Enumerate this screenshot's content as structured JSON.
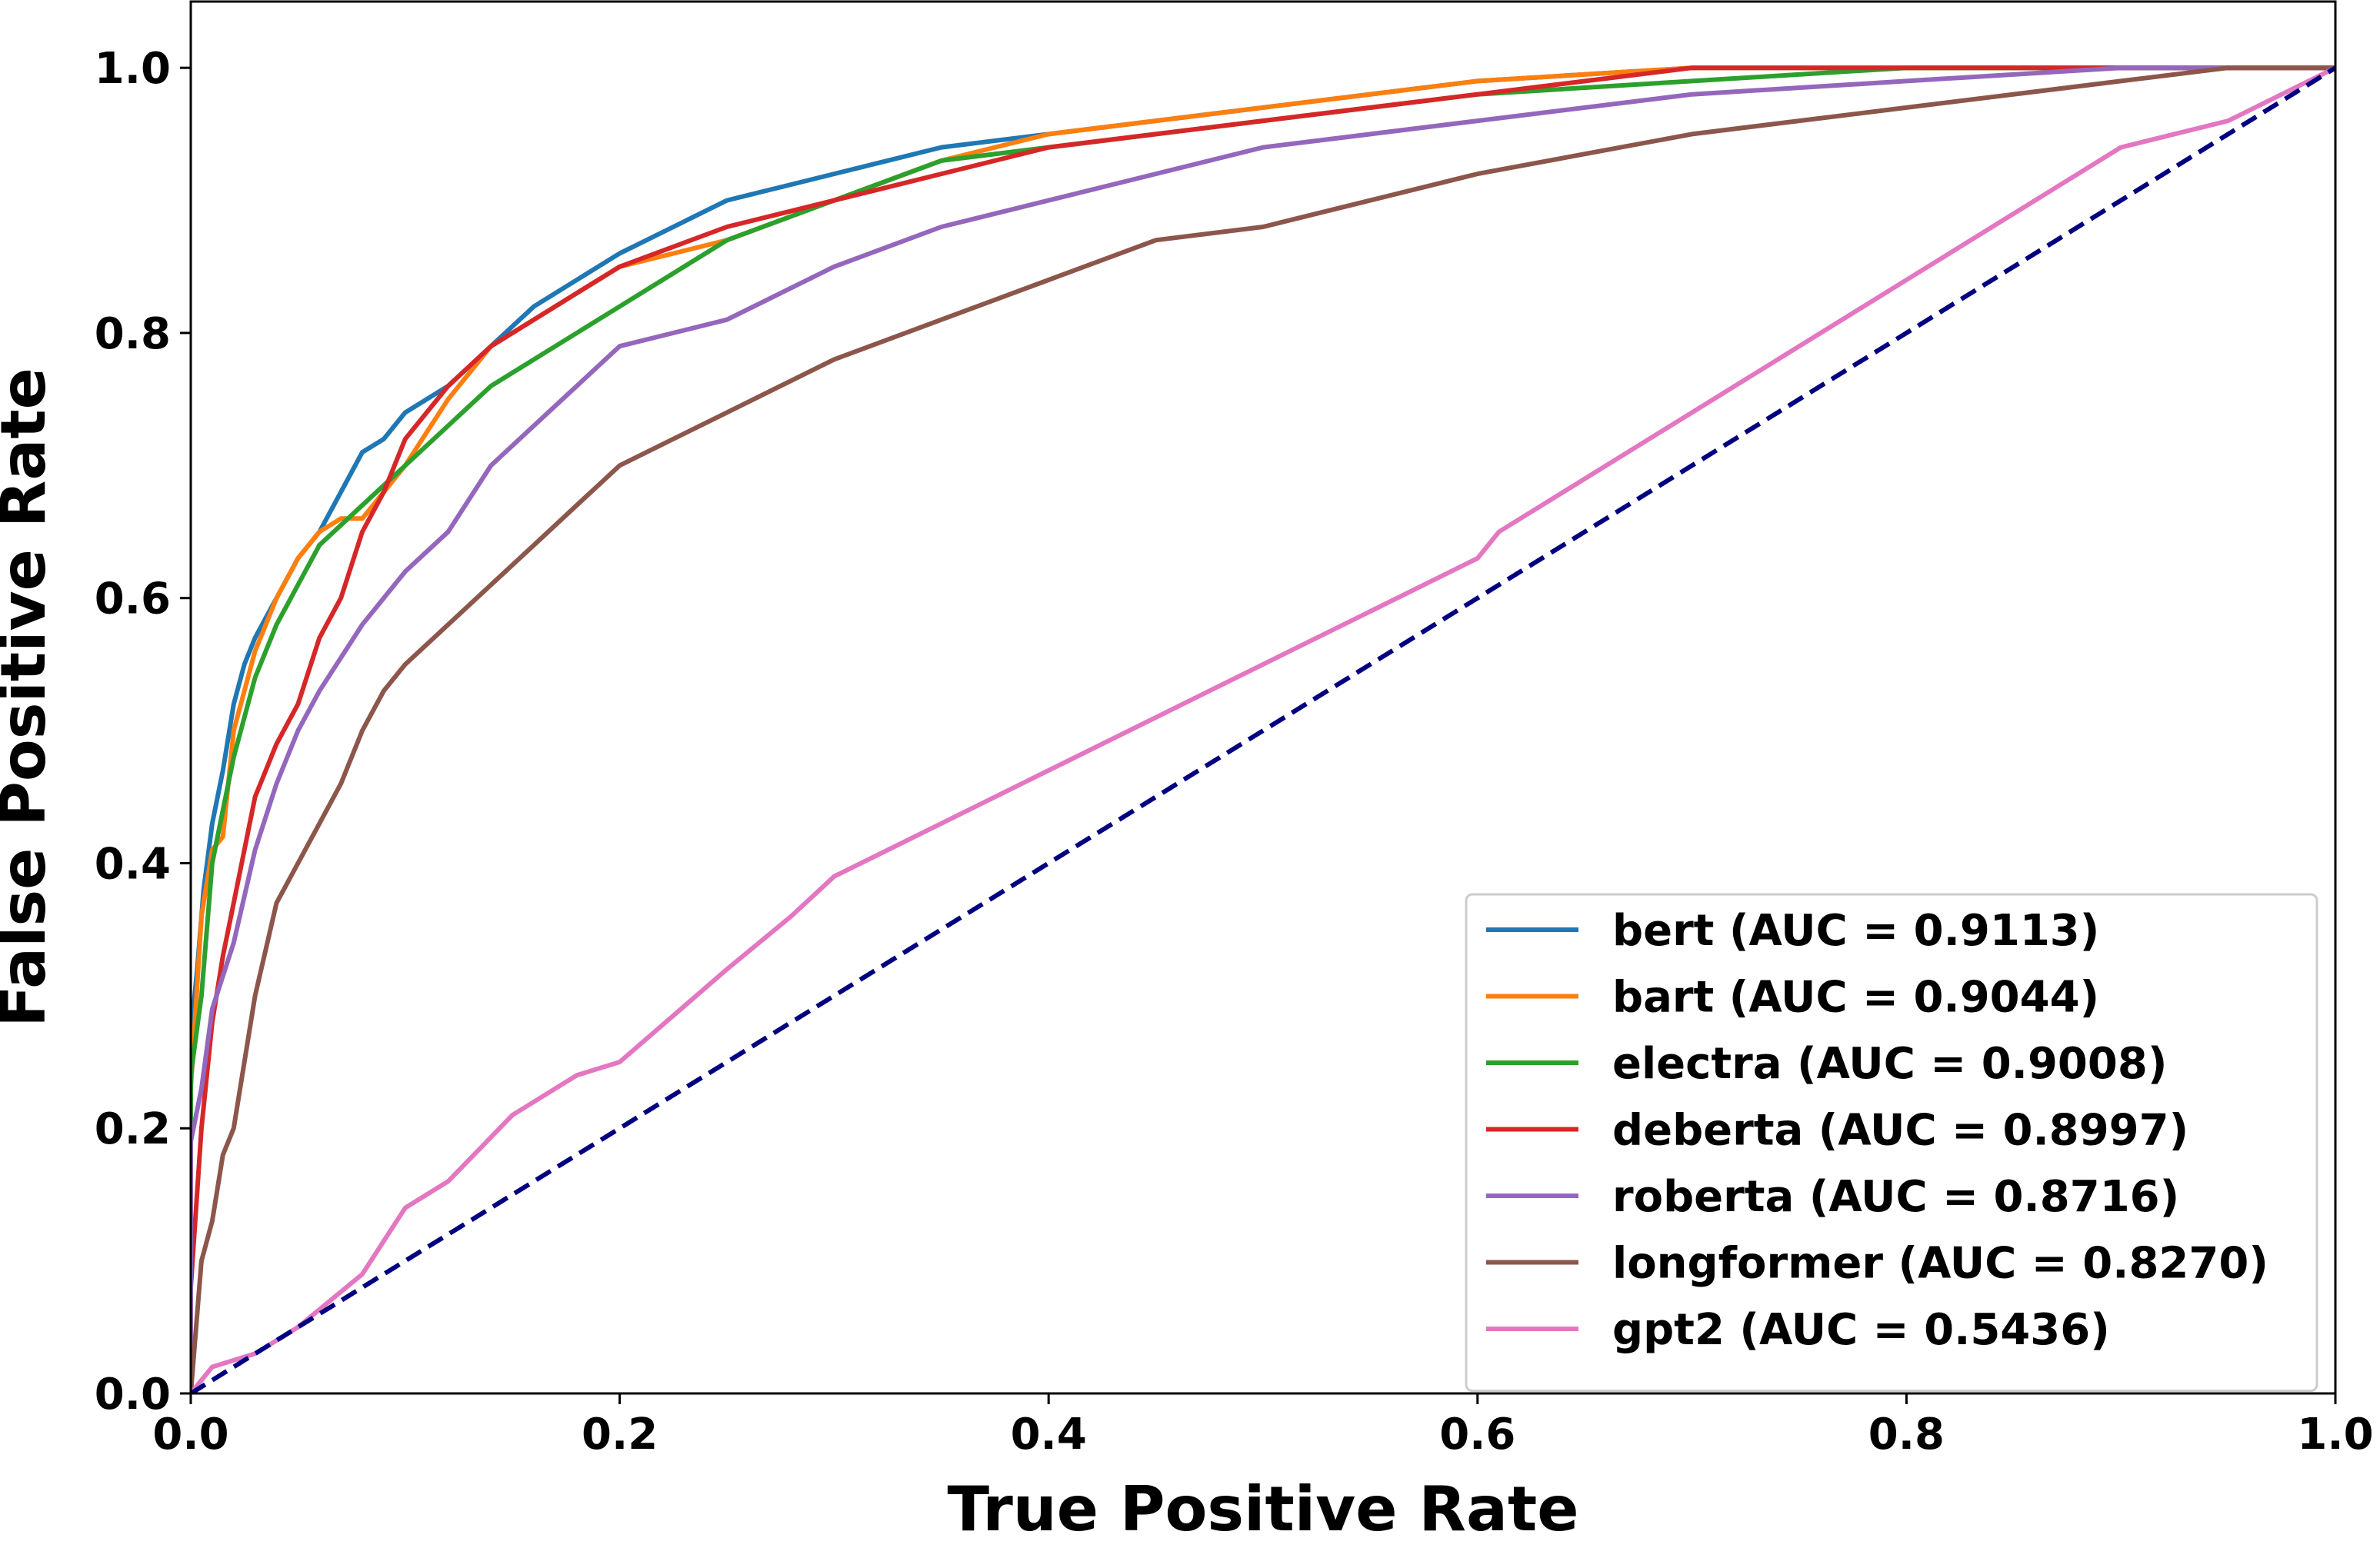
{
  "chart_data": {
    "type": "line",
    "title": "",
    "xlabel": "True Positive Rate",
    "ylabel": "False Positive Rate",
    "xlim": [
      0.0,
      1.0
    ],
    "ylim": [
      0.0,
      1.05
    ],
    "xticks": [
      "0.0",
      "0.2",
      "0.4",
      "0.6",
      "0.8",
      "1.0"
    ],
    "yticks": [
      "0.0",
      "0.2",
      "0.4",
      "0.6",
      "0.8",
      "1.0"
    ],
    "grid": false,
    "legend_position": "lower-right",
    "series": [
      {
        "name": "bert (AUC = 0.9113)",
        "color": "#1f77b4",
        "x": [
          0,
          0.0,
          0.003,
          0.006,
          0.01,
          0.015,
          0.02,
          0.025,
          0.03,
          0.04,
          0.05,
          0.06,
          0.07,
          0.08,
          0.09,
          0.1,
          0.12,
          0.14,
          0.16,
          0.18,
          0.2,
          0.25,
          0.3,
          0.35,
          0.4,
          0.45,
          0.5,
          0.6,
          0.7,
          0.8,
          0.9,
          1.0
        ],
        "y": [
          0,
          0.27,
          0.32,
          0.38,
          0.43,
          0.47,
          0.52,
          0.55,
          0.57,
          0.6,
          0.63,
          0.65,
          0.68,
          0.71,
          0.72,
          0.74,
          0.76,
          0.79,
          0.82,
          0.84,
          0.86,
          0.9,
          0.92,
          0.94,
          0.95,
          0.96,
          0.97,
          0.99,
          1.0,
          1.0,
          1.0,
          1.0
        ]
      },
      {
        "name": "bart (AUC = 0.9044)",
        "color": "#ff7f0e",
        "x": [
          0,
          0.0,
          0.005,
          0.01,
          0.015,
          0.02,
          0.03,
          0.04,
          0.05,
          0.06,
          0.07,
          0.08,
          0.09,
          0.1,
          0.12,
          0.14,
          0.16,
          0.18,
          0.2,
          0.25,
          0.3,
          0.35,
          0.4,
          0.45,
          0.5,
          0.6,
          0.7,
          0.8,
          0.9,
          1.0
        ],
        "y": [
          0,
          0.23,
          0.36,
          0.41,
          0.42,
          0.5,
          0.56,
          0.6,
          0.63,
          0.65,
          0.66,
          0.66,
          0.68,
          0.7,
          0.75,
          0.79,
          0.81,
          0.83,
          0.85,
          0.87,
          0.9,
          0.93,
          0.95,
          0.96,
          0.97,
          0.99,
          1.0,
          1.0,
          1.0,
          1.0
        ]
      },
      {
        "name": "electra (AUC = 0.9008)",
        "color": "#2ca02c",
        "x": [
          0,
          0.0,
          0.005,
          0.01,
          0.015,
          0.02,
          0.03,
          0.04,
          0.05,
          0.06,
          0.08,
          0.1,
          0.12,
          0.14,
          0.16,
          0.18,
          0.2,
          0.25,
          0.3,
          0.35,
          0.4,
          0.45,
          0.5,
          0.6,
          0.7,
          0.8,
          0.9,
          1.0
        ],
        "y": [
          0,
          0.24,
          0.3,
          0.4,
          0.44,
          0.48,
          0.54,
          0.58,
          0.61,
          0.64,
          0.67,
          0.7,
          0.73,
          0.76,
          0.78,
          0.8,
          0.82,
          0.87,
          0.9,
          0.93,
          0.94,
          0.95,
          0.96,
          0.98,
          0.99,
          1.0,
          1.0,
          1.0
        ]
      },
      {
        "name": "deberta (AUC = 0.8997)",
        "color": "#d62728",
        "x": [
          0,
          0.0,
          0.005,
          0.01,
          0.015,
          0.02,
          0.03,
          0.04,
          0.05,
          0.06,
          0.07,
          0.08,
          0.09,
          0.1,
          0.12,
          0.14,
          0.16,
          0.18,
          0.2,
          0.25,
          0.3,
          0.35,
          0.4,
          0.45,
          0.5,
          0.6,
          0.7,
          0.8,
          0.9,
          1.0
        ],
        "y": [
          0,
          0.08,
          0.2,
          0.28,
          0.33,
          0.37,
          0.45,
          0.49,
          0.52,
          0.57,
          0.6,
          0.65,
          0.68,
          0.72,
          0.76,
          0.79,
          0.81,
          0.83,
          0.85,
          0.88,
          0.9,
          0.92,
          0.94,
          0.95,
          0.96,
          0.98,
          1.0,
          1.0,
          1.0,
          1.0
        ]
      },
      {
        "name": "roberta (AUC = 0.8716)",
        "color": "#9467bd",
        "x": [
          0,
          0.0,
          0.005,
          0.01,
          0.02,
          0.03,
          0.04,
          0.05,
          0.06,
          0.08,
          0.1,
          0.12,
          0.14,
          0.16,
          0.18,
          0.2,
          0.25,
          0.3,
          0.35,
          0.4,
          0.45,
          0.5,
          0.55,
          0.6,
          0.7,
          0.8,
          0.9,
          1.0
        ],
        "y": [
          0,
          0.19,
          0.23,
          0.29,
          0.34,
          0.41,
          0.46,
          0.5,
          0.53,
          0.58,
          0.62,
          0.65,
          0.7,
          0.73,
          0.76,
          0.79,
          0.81,
          0.85,
          0.88,
          0.9,
          0.92,
          0.94,
          0.95,
          0.96,
          0.98,
          0.99,
          1.0,
          1.0
        ]
      },
      {
        "name": "longformer (AUC = 0.8270)",
        "color": "#8c564b",
        "x": [
          0,
          0.0,
          0.005,
          0.01,
          0.015,
          0.02,
          0.03,
          0.04,
          0.05,
          0.06,
          0.07,
          0.08,
          0.09,
          0.1,
          0.12,
          0.14,
          0.16,
          0.18,
          0.2,
          0.25,
          0.3,
          0.35,
          0.4,
          0.45,
          0.5,
          0.6,
          0.7,
          0.8,
          0.9,
          0.95,
          1.0
        ],
        "y": [
          0,
          0.0,
          0.1,
          0.13,
          0.18,
          0.2,
          0.3,
          0.37,
          0.4,
          0.43,
          0.46,
          0.5,
          0.53,
          0.55,
          0.58,
          0.61,
          0.64,
          0.67,
          0.7,
          0.74,
          0.78,
          0.81,
          0.84,
          0.87,
          0.88,
          0.92,
          0.95,
          0.97,
          0.99,
          1.0,
          1.0
        ]
      },
      {
        "name": "gpt2 (AUC = 0.5436)",
        "color": "#e377c2",
        "x": [
          0,
          0.0,
          0.01,
          0.02,
          0.03,
          0.05,
          0.08,
          0.1,
          0.12,
          0.15,
          0.18,
          0.2,
          0.25,
          0.28,
          0.3,
          0.35,
          0.4,
          0.45,
          0.5,
          0.55,
          0.6,
          0.61,
          0.7,
          0.8,
          0.9,
          0.95,
          1.0
        ],
        "y": [
          0,
          0.0,
          0.02,
          0.025,
          0.03,
          0.05,
          0.09,
          0.14,
          0.16,
          0.21,
          0.24,
          0.25,
          0.32,
          0.36,
          0.39,
          0.43,
          0.47,
          0.51,
          0.55,
          0.59,
          0.63,
          0.65,
          0.74,
          0.84,
          0.94,
          0.96,
          1.0
        ]
      },
      {
        "name": "",
        "color": "#000080",
        "dashed": true,
        "x": [
          0.0,
          1.0
        ],
        "y": [
          0.0,
          1.0
        ]
      }
    ]
  }
}
